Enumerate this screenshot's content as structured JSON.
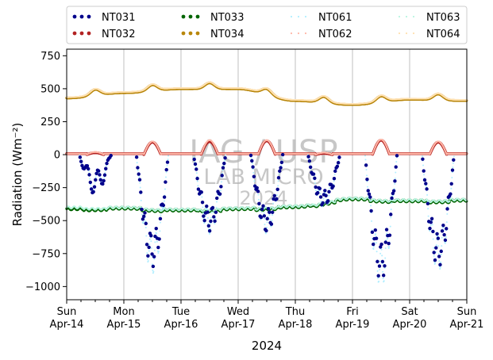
{
  "chart_data": {
    "type": "scatter",
    "title": "",
    "xlabel": "2024",
    "ylabel": "Radiation",
    "ylabel_unit": "(Wm⁻²)",
    "ylim": [
      -1100,
      800
    ],
    "xlim": [
      0,
      7
    ],
    "y_ticks": [
      750,
      500,
      250,
      0,
      -250,
      -500,
      -750,
      -1000
    ],
    "y_tick_labels": [
      "750",
      "500",
      "250",
      "0",
      "−250",
      "−500",
      "−750",
      "−1000"
    ],
    "x_ticks": [
      {
        "day": "Sun",
        "date": "Apr-14"
      },
      {
        "day": "Mon",
        "date": "Apr-15"
      },
      {
        "day": "Tue",
        "date": "Apr-16"
      },
      {
        "day": "Wed",
        "date": "Apr-17"
      },
      {
        "day": "Thu",
        "date": "Apr-18"
      },
      {
        "day": "Fri",
        "date": "Apr-19"
      },
      {
        "day": "Sat",
        "date": "Apr-20"
      },
      {
        "day": "Sun",
        "date": "Apr-21"
      }
    ],
    "grid": "vertical",
    "legend_position": "top, above plot, 4 columns",
    "watermark": [
      "IAG / USP",
      "LAB MICRO",
      "2024"
    ],
    "series": [
      {
        "name": "NT031",
        "color": "#00008b",
        "style": "dots",
        "kind": "night_long",
        "values": [
          -300,
          -850,
          -580,
          -590,
          -390,
          -950,
          -850
        ]
      },
      {
        "name": "NT032",
        "color": "#b22222",
        "style": "dots",
        "kind": "day_short",
        "values": [
          15,
          95,
          100,
          105,
          10,
          110,
          95
        ]
      },
      {
        "name": "NT033",
        "color": "#006400",
        "style": "dots",
        "kind": "base",
        "values": [
          -410,
          -405,
          -420,
          -410,
          -395,
          -335,
          -350,
          -345
        ]
      },
      {
        "name": "NT034",
        "color": "#b8860b",
        "style": "dots",
        "kind": "base_peaks",
        "values": [
          430,
          470,
          500,
          500,
          410,
          380,
          420,
          410
        ]
      },
      {
        "name": "NT061",
        "color": "#b0eeff",
        "style": "dotted",
        "kind": "night_long",
        "values": [
          -300,
          -900,
          -600,
          -600,
          -400,
          -1000,
          -880
        ]
      },
      {
        "name": "NT062",
        "color": "#ffb6a6",
        "style": "dotted",
        "kind": "day_short",
        "values": [
          20,
          100,
          110,
          110,
          15,
          115,
          100
        ]
      },
      {
        "name": "NT063",
        "color": "#b8f5e0",
        "style": "dotted",
        "kind": "base",
        "values": [
          -400,
          -400,
          -415,
          -405,
          -390,
          -330,
          -345,
          -340
        ]
      },
      {
        "name": "NT064",
        "color": "#ffe0b0",
        "style": "dotted",
        "kind": "base_peaks",
        "values": [
          435,
          475,
          505,
          505,
          415,
          385,
          425,
          415
        ]
      }
    ]
  }
}
